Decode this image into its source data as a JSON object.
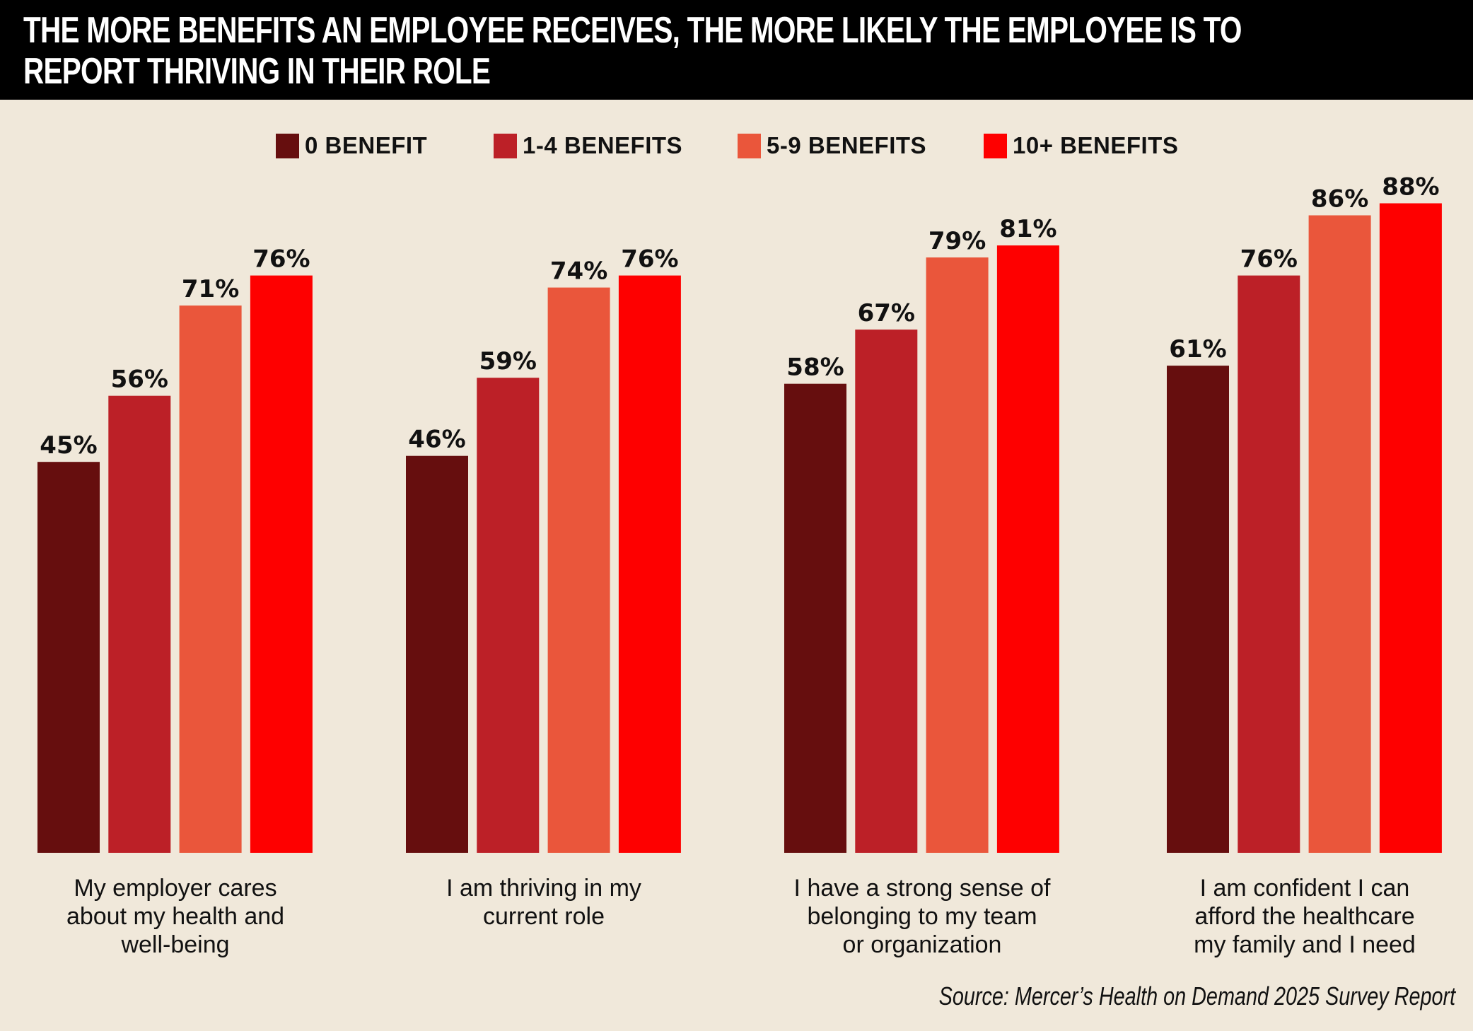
{
  "title": {
    "line1": "THE MORE BENEFITS AN EMPLOYEE RECEIVES, THE MORE LIKELY THE EMPLOYEE IS TO",
    "line2": "REPORT THRIVING IN THEIR ROLE"
  },
  "source": "Source: Mercer’s Health on Demand 2025 Survey Report",
  "colors": {
    "background": "#f0e8da",
    "title_bar": "#000000",
    "series": [
      "#660e0e",
      "#bc2027",
      "#ea563b",
      "#fe0000"
    ]
  },
  "chart_data": {
    "type": "bar",
    "title": "THE MORE BENEFITS AN EMPLOYEE RECEIVES, THE MORE LIKELY THE EMPLOYEE IS TO REPORT THRIVING IN THEIR ROLE",
    "xlabel": "",
    "ylabel": "",
    "unit": "%",
    "ylim": [
      -20,
      95
    ],
    "grid": false,
    "legend_position": "top-center",
    "categories": [
      "My employer cares\nabout my health and\nwell-being",
      "I am thriving in my\ncurrent role",
      "I have a strong sense of\nbelonging to my team\nor organization",
      "I am confident I can\nafford the healthcare\nmy family and I need"
    ],
    "series": [
      {
        "name": "0 BENEFIT",
        "color": "#660e0e",
        "values": [
          45,
          46,
          58,
          61
        ]
      },
      {
        "name": "1-4 BENEFITS",
        "color": "#bc2027",
        "values": [
          56,
          59,
          67,
          76
        ]
      },
      {
        "name": "5-9 BENEFITS",
        "color": "#ea563b",
        "values": [
          71,
          74,
          79,
          86
        ]
      },
      {
        "name": "10+ BENEFITS",
        "color": "#fe0000",
        "values": [
          76,
          76,
          81,
          88
        ]
      }
    ],
    "source": "Source: Mercer’s Health on Demand 2025 Survey Report"
  }
}
